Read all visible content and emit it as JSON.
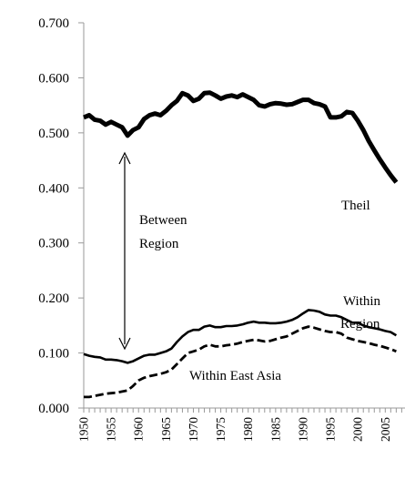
{
  "chart_data": {
    "type": "line",
    "title": "",
    "xlabel": "",
    "ylabel": "",
    "xlim": [
      1950,
      2007
    ],
    "ylim": [
      0.0,
      0.7
    ],
    "yticks": [
      "0.000",
      "0.100",
      "0.200",
      "0.300",
      "0.400",
      "0.500",
      "0.600",
      "0.700"
    ],
    "xticks": [
      "1950",
      "1955",
      "1960",
      "1965",
      "1970",
      "1975",
      "1980",
      "1985",
      "1990",
      "1995",
      "2000",
      "2005"
    ],
    "grid": false,
    "legend": "none",
    "series": [
      {
        "name": "Theil",
        "style": "thick-solid",
        "color": "#000000",
        "x": [
          1950,
          1951,
          1952,
          1953,
          1954,
          1955,
          1956,
          1957,
          1958,
          1959,
          1960,
          1961,
          1962,
          1963,
          1964,
          1965,
          1966,
          1967,
          1968,
          1969,
          1970,
          1971,
          1972,
          1973,
          1974,
          1975,
          1976,
          1977,
          1978,
          1979,
          1980,
          1981,
          1982,
          1983,
          1984,
          1985,
          1986,
          1987,
          1988,
          1989,
          1990,
          1991,
          1992,
          1993,
          1994,
          1995,
          1996,
          1997,
          1998,
          1999,
          2000,
          2001,
          2002,
          2003,
          2004,
          2005,
          2006,
          2007
        ],
        "y": [
          0.528,
          0.532,
          0.524,
          0.522,
          0.515,
          0.52,
          0.515,
          0.51,
          0.495,
          0.505,
          0.51,
          0.525,
          0.532,
          0.535,
          0.532,
          0.54,
          0.55,
          0.558,
          0.572,
          0.568,
          0.558,
          0.562,
          0.572,
          0.573,
          0.568,
          0.562,
          0.566,
          0.568,
          0.565,
          0.57,
          0.565,
          0.56,
          0.55,
          0.548,
          0.552,
          0.554,
          0.553,
          0.551,
          0.552,
          0.556,
          0.56,
          0.56,
          0.554,
          0.552,
          0.548,
          0.528,
          0.528,
          0.53,
          0.538,
          0.536,
          0.522,
          0.505,
          0.485,
          0.468,
          0.452,
          0.437,
          0.423,
          0.41
        ]
      },
      {
        "name": "Within Region",
        "style": "solid",
        "color": "#000000",
        "x": [
          1950,
          1951,
          1952,
          1953,
          1954,
          1955,
          1956,
          1957,
          1958,
          1959,
          1960,
          1961,
          1962,
          1963,
          1964,
          1965,
          1966,
          1967,
          1968,
          1969,
          1970,
          1971,
          1972,
          1973,
          1974,
          1975,
          1976,
          1977,
          1978,
          1979,
          1980,
          1981,
          1982,
          1983,
          1984,
          1985,
          1986,
          1987,
          1988,
          1989,
          1990,
          1991,
          1992,
          1993,
          1994,
          1995,
          1996,
          1997,
          1998,
          1999,
          2000,
          2001,
          2002,
          2003,
          2004,
          2005,
          2006,
          2007
        ],
        "y": [
          0.098,
          0.095,
          0.093,
          0.092,
          0.088,
          0.088,
          0.087,
          0.085,
          0.082,
          0.085,
          0.09,
          0.095,
          0.097,
          0.097,
          0.1,
          0.103,
          0.108,
          0.12,
          0.13,
          0.138,
          0.142,
          0.142,
          0.148,
          0.15,
          0.147,
          0.147,
          0.149,
          0.149,
          0.15,
          0.152,
          0.155,
          0.157,
          0.155,
          0.155,
          0.154,
          0.154,
          0.155,
          0.157,
          0.16,
          0.165,
          0.172,
          0.178,
          0.177,
          0.175,
          0.17,
          0.168,
          0.168,
          0.165,
          0.16,
          0.155,
          0.155,
          0.15,
          0.147,
          0.145,
          0.143,
          0.14,
          0.138,
          0.132
        ]
      },
      {
        "name": "Within East Asia",
        "style": "thick-dashed",
        "color": "#000000",
        "x": [
          1950,
          1951,
          1952,
          1953,
          1954,
          1955,
          1956,
          1957,
          1958,
          1959,
          1960,
          1961,
          1962,
          1963,
          1964,
          1965,
          1966,
          1967,
          1968,
          1969,
          1970,
          1971,
          1972,
          1973,
          1974,
          1975,
          1976,
          1977,
          1978,
          1979,
          1980,
          1981,
          1982,
          1983,
          1984,
          1985,
          1986,
          1987,
          1988,
          1989,
          1990,
          1991,
          1992,
          1993,
          1994,
          1995,
          1996,
          1997,
          1998,
          1999,
          2000,
          2001,
          2002,
          2003,
          2004,
          2005,
          2006,
          2007
        ],
        "y": [
          0.02,
          0.02,
          0.022,
          0.024,
          0.026,
          0.027,
          0.028,
          0.03,
          0.032,
          0.04,
          0.05,
          0.055,
          0.058,
          0.06,
          0.062,
          0.065,
          0.07,
          0.08,
          0.09,
          0.1,
          0.103,
          0.106,
          0.112,
          0.115,
          0.112,
          0.112,
          0.114,
          0.115,
          0.117,
          0.12,
          0.122,
          0.124,
          0.123,
          0.121,
          0.122,
          0.125,
          0.128,
          0.13,
          0.135,
          0.14,
          0.145,
          0.148,
          0.146,
          0.143,
          0.14,
          0.138,
          0.138,
          0.135,
          0.128,
          0.125,
          0.122,
          0.12,
          0.118,
          0.115,
          0.113,
          0.11,
          0.107,
          0.103
        ]
      }
    ],
    "annotations": {
      "theil": "Theil",
      "between_line1": "Between",
      "between_line2": "Region",
      "within_line1": "Within",
      "within_line2": "Region",
      "east_asia": "Within East Asia"
    }
  }
}
